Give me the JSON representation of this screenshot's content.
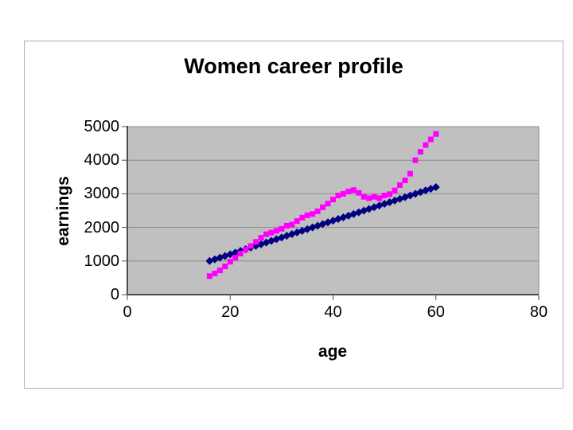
{
  "page": {
    "background": "#ffffff"
  },
  "slide": {
    "border_color": "#adadad"
  },
  "chart_data": {
    "type": "scatter",
    "title": "Women career profile",
    "xlabel": "age",
    "ylabel": "earnings",
    "xlim": [
      0,
      80
    ],
    "ylim": [
      0,
      5000
    ],
    "xticks": [
      0,
      20,
      40,
      60,
      80
    ],
    "yticks": [
      0,
      1000,
      2000,
      3000,
      4000,
      5000
    ],
    "grid": "horizontal-only",
    "legend": "none",
    "plot_background": "#c0c0c0",
    "gridline_color": "#8c8c8c",
    "axis_color": "#4d4d4d",
    "x": [
      16,
      17,
      18,
      19,
      20,
      21,
      22,
      23,
      24,
      25,
      26,
      27,
      28,
      29,
      30,
      31,
      32,
      33,
      34,
      35,
      36,
      37,
      38,
      39,
      40,
      41,
      42,
      43,
      44,
      45,
      46,
      47,
      48,
      49,
      50,
      51,
      52,
      53,
      54,
      55,
      56,
      57,
      58,
      59,
      60
    ],
    "series": [
      {
        "name": "blue-diamond-series",
        "marker": "diamond",
        "color": "#000080",
        "values": [
          1000,
          1050,
          1100,
          1150,
          1200,
          1250,
          1300,
          1350,
          1400,
          1450,
          1500,
          1550,
          1600,
          1650,
          1700,
          1750,
          1800,
          1850,
          1900,
          1950,
          2000,
          2050,
          2100,
          2150,
          2200,
          2250,
          2300,
          2350,
          2400,
          2450,
          2500,
          2550,
          2600,
          2650,
          2700,
          2750,
          2800,
          2850,
          2900,
          2950,
          3000,
          3050,
          3100,
          3150,
          3200
        ]
      },
      {
        "name": "pink-square-series",
        "marker": "square",
        "color": "#ff00ff",
        "values": [
          550,
          630,
          720,
          840,
          980,
          1100,
          1220,
          1340,
          1450,
          1570,
          1690,
          1800,
          1845,
          1900,
          1960,
          2050,
          2085,
          2190,
          2290,
          2360,
          2400,
          2480,
          2600,
          2710,
          2830,
          2950,
          3000,
          3070,
          3110,
          3030,
          2910,
          2870,
          2910,
          2870,
          2950,
          2990,
          3100,
          3260,
          3400,
          3600,
          4000,
          4250,
          4450,
          4620,
          4780
        ]
      }
    ]
  }
}
